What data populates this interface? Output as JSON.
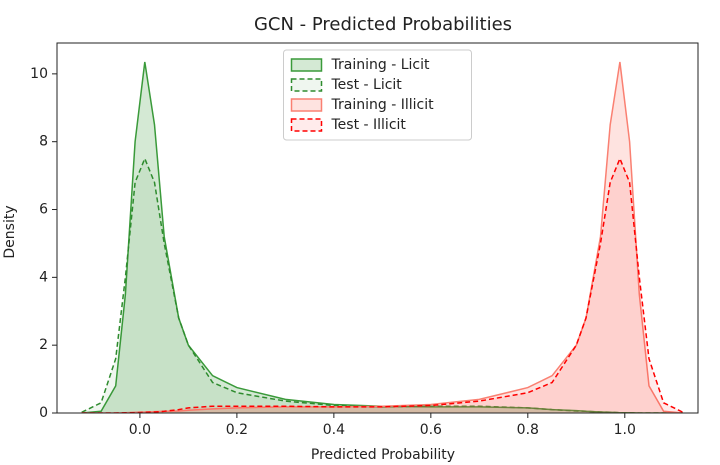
{
  "chart_data": {
    "type": "kde",
    "title": "GCN - Predicted Probabilities",
    "xlabel": "Predicted Probability",
    "ylabel": "Density",
    "x": [
      -0.12,
      -0.08,
      -0.05,
      -0.03,
      -0.01,
      0.01,
      0.03,
      0.05,
      0.08,
      0.1,
      0.15,
      0.2,
      0.3,
      0.4,
      0.5,
      0.6,
      0.7,
      0.8,
      0.85,
      0.9,
      0.92,
      0.95,
      0.97,
      0.99,
      1.01,
      1.03,
      1.05,
      1.08,
      1.12
    ],
    "series": [
      {
        "name": "Training - Licit",
        "color": "#3a9a3a",
        "linestyle": "solid",
        "values": [
          0,
          0.05,
          0.8,
          3.5,
          8.0,
          10.35,
          8.5,
          5.2,
          2.8,
          2.0,
          1.1,
          0.75,
          0.4,
          0.25,
          0.2,
          0.18,
          0.18,
          0.15,
          0.1,
          0.07,
          0.05,
          0.03,
          0.02,
          0.01,
          0.01,
          0,
          0,
          0,
          0
        ]
      },
      {
        "name": "Test - Licit",
        "color": "#2e8b2e",
        "linestyle": "dashed",
        "values": [
          0.02,
          0.3,
          1.6,
          4.0,
          6.8,
          7.5,
          6.8,
          5.0,
          2.8,
          2.0,
          0.9,
          0.6,
          0.35,
          0.22,
          0.18,
          0.2,
          0.2,
          0.15,
          0.1,
          0.06,
          0.05,
          0.03,
          0.02,
          0.01,
          0.01,
          0,
          0,
          0,
          0
        ]
      },
      {
        "name": "Training - Illicit",
        "color": "#fa8072",
        "linestyle": "solid",
        "values": [
          0,
          0,
          0,
          0.01,
          0.02,
          0.03,
          0.04,
          0.05,
          0.06,
          0.08,
          0.12,
          0.15,
          0.18,
          0.18,
          0.2,
          0.25,
          0.4,
          0.75,
          1.1,
          2.0,
          2.8,
          5.2,
          8.5,
          10.35,
          8.0,
          3.5,
          0.8,
          0.05,
          0
        ]
      },
      {
        "name": "Test - Illicit",
        "color": "#ff0000",
        "linestyle": "dashed",
        "values": [
          0,
          0,
          0,
          0.01,
          0.01,
          0.02,
          0.03,
          0.05,
          0.1,
          0.15,
          0.2,
          0.2,
          0.2,
          0.18,
          0.18,
          0.22,
          0.35,
          0.6,
          0.9,
          2.0,
          2.8,
          5.0,
          6.8,
          7.5,
          6.8,
          4.0,
          1.6,
          0.3,
          0.02
        ]
      }
    ],
    "xlim": [
      -0.171,
      1.151
    ],
    "ylim": [
      0,
      10.91
    ],
    "xticks": [
      {
        "value": 0,
        "label": "0.0"
      },
      {
        "value": 0.2,
        "label": "0.2"
      },
      {
        "value": 0.4,
        "label": "0.4"
      },
      {
        "value": 0.6,
        "label": "0.6"
      },
      {
        "value": 0.8,
        "label": "0.8"
      },
      {
        "value": 1,
        "label": "1.0"
      }
    ],
    "yticks": [
      0,
      2,
      4,
      6,
      8,
      10
    ],
    "grid": false,
    "legend": "upper center"
  }
}
